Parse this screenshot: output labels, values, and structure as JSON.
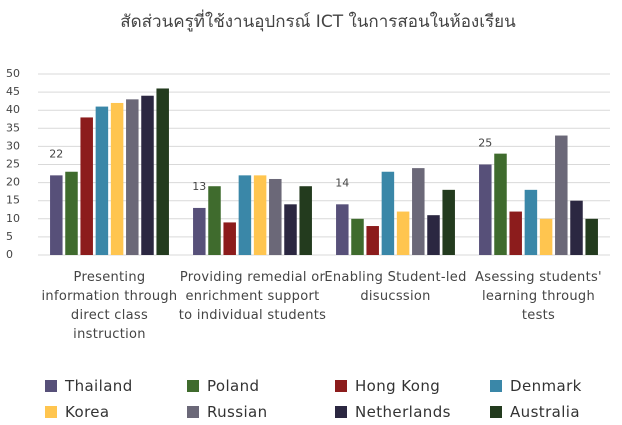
{
  "chart_data": {
    "type": "bar",
    "title": "สัดส่วนครูที่ใช้งานอุปกรณ์ ICT ในการสอนในห้องเรียน",
    "categories": [
      "Presenting information through direct class instruction",
      "Providing remedial or enrichment support to individual students",
      "Enabling Student-led disucssion",
      "Asessing students' learning through tests"
    ],
    "series": [
      {
        "name": "Thailand",
        "color": "#575079",
        "values": [
          22,
          13,
          14,
          25
        ],
        "show_labels": true
      },
      {
        "name": "Poland",
        "color": "#3f6b2d",
        "values": [
          23,
          19,
          10,
          28
        ]
      },
      {
        "name": "Hong Kong",
        "color": "#8c1c1c",
        "values": [
          38,
          9,
          8,
          12
        ]
      },
      {
        "name": "Denmark",
        "color": "#3a87a8",
        "values": [
          41,
          22,
          23,
          18
        ]
      },
      {
        "name": "Korea",
        "color": "#ffc54f",
        "values": [
          42,
          22,
          12,
          10
        ]
      },
      {
        "name": "Russian",
        "color": "#6b6878",
        "values": [
          43,
          21,
          24,
          33
        ]
      },
      {
        "name": "Netherlands",
        "color": "#2b2741",
        "values": [
          44,
          14,
          11,
          15
        ]
      },
      {
        "name": "Australia",
        "color": "#233b1e",
        "values": [
          46,
          19,
          18,
          10
        ]
      }
    ],
    "ylim": [
      0,
      50
    ],
    "yticks": [
      0,
      5,
      10,
      15,
      20,
      25,
      30,
      35,
      40,
      45,
      50
    ],
    "grid": true,
    "legend": "bottom"
  }
}
